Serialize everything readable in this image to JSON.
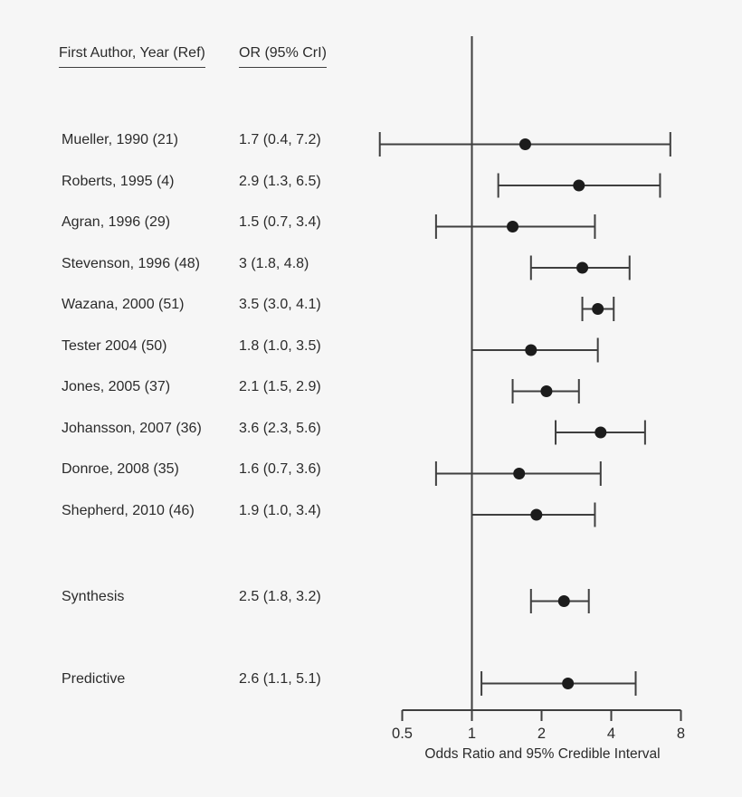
{
  "header": {
    "col1": "First Author, Year (Ref)",
    "col2": "OR (95% CrI)"
  },
  "axis": {
    "caption": "Odds Ratio and 95% Credible Interval",
    "tick_labels": [
      "0.5",
      "1",
      "2",
      "4",
      "8"
    ],
    "tick_values": [
      0.5,
      1,
      2,
      4,
      8
    ],
    "reference_value": 1
  },
  "chart_data": {
    "type": "scatter",
    "subtype": "forest-plot",
    "x_scale": "log2",
    "xlim": [
      0.5,
      8
    ],
    "xlabel": "Odds Ratio and 95% Credible Interval",
    "x_ticks": [
      0.5,
      1,
      2,
      4,
      8
    ],
    "reference_line_x": 1,
    "legend": null,
    "grid": false,
    "rows": [
      {
        "label": "Mueller, 1990 (21)",
        "or_text": "1.7 (0.4, 7.2)",
        "estimate": 1.7,
        "lower": 0.4,
        "upper": 7.2,
        "group": "study"
      },
      {
        "label": "Roberts, 1995 (4)",
        "or_text": "2.9 (1.3, 6.5)",
        "estimate": 2.9,
        "lower": 1.3,
        "upper": 6.5,
        "group": "study"
      },
      {
        "label": "Agran, 1996 (29)",
        "or_text": "1.5 (0.7, 3.4)",
        "estimate": 1.5,
        "lower": 0.7,
        "upper": 3.4,
        "group": "study"
      },
      {
        "label": "Stevenson, 1996 (48)",
        "or_text": "3 (1.8, 4.8)",
        "estimate": 3.0,
        "lower": 1.8,
        "upper": 4.8,
        "group": "study"
      },
      {
        "label": "Wazana, 2000 (51)",
        "or_text": "3.5 (3.0, 4.1)",
        "estimate": 3.5,
        "lower": 3.0,
        "upper": 4.1,
        "group": "study"
      },
      {
        "label": "Tester 2004 (50)",
        "or_text": "1.8 (1.0, 3.5)",
        "estimate": 1.8,
        "lower": 1.0,
        "upper": 3.5,
        "group": "study"
      },
      {
        "label": "Jones, 2005 (37)",
        "or_text": "2.1 (1.5, 2.9)",
        "estimate": 2.1,
        "lower": 1.5,
        "upper": 2.9,
        "group": "study"
      },
      {
        "label": "Johansson, 2007 (36)",
        "or_text": "3.6 (2.3, 5.6)",
        "estimate": 3.6,
        "lower": 2.3,
        "upper": 5.6,
        "group": "study"
      },
      {
        "label": "Donroe, 2008 (35)",
        "or_text": "1.6 (0.7, 3.6)",
        "estimate": 1.6,
        "lower": 0.7,
        "upper": 3.6,
        "group": "study"
      },
      {
        "label": "Shepherd, 2010 (46)",
        "or_text": "1.9 (1.0, 3.4)",
        "estimate": 1.9,
        "lower": 1.0,
        "upper": 3.4,
        "group": "study"
      },
      {
        "label": "Synthesis",
        "or_text": "2.5 (1.8, 3.2)",
        "estimate": 2.5,
        "lower": 1.8,
        "upper": 3.2,
        "group": "summary"
      },
      {
        "label": "Predictive",
        "or_text": "2.6 (1.1, 5.1)",
        "estimate": 2.6,
        "lower": 1.1,
        "upper": 5.1,
        "group": "summary"
      }
    ]
  },
  "colors": {
    "background": "#f6f6f6",
    "line": "#3f3f3f",
    "marker": "#1c1c1c",
    "text": "#2b2b2b"
  }
}
